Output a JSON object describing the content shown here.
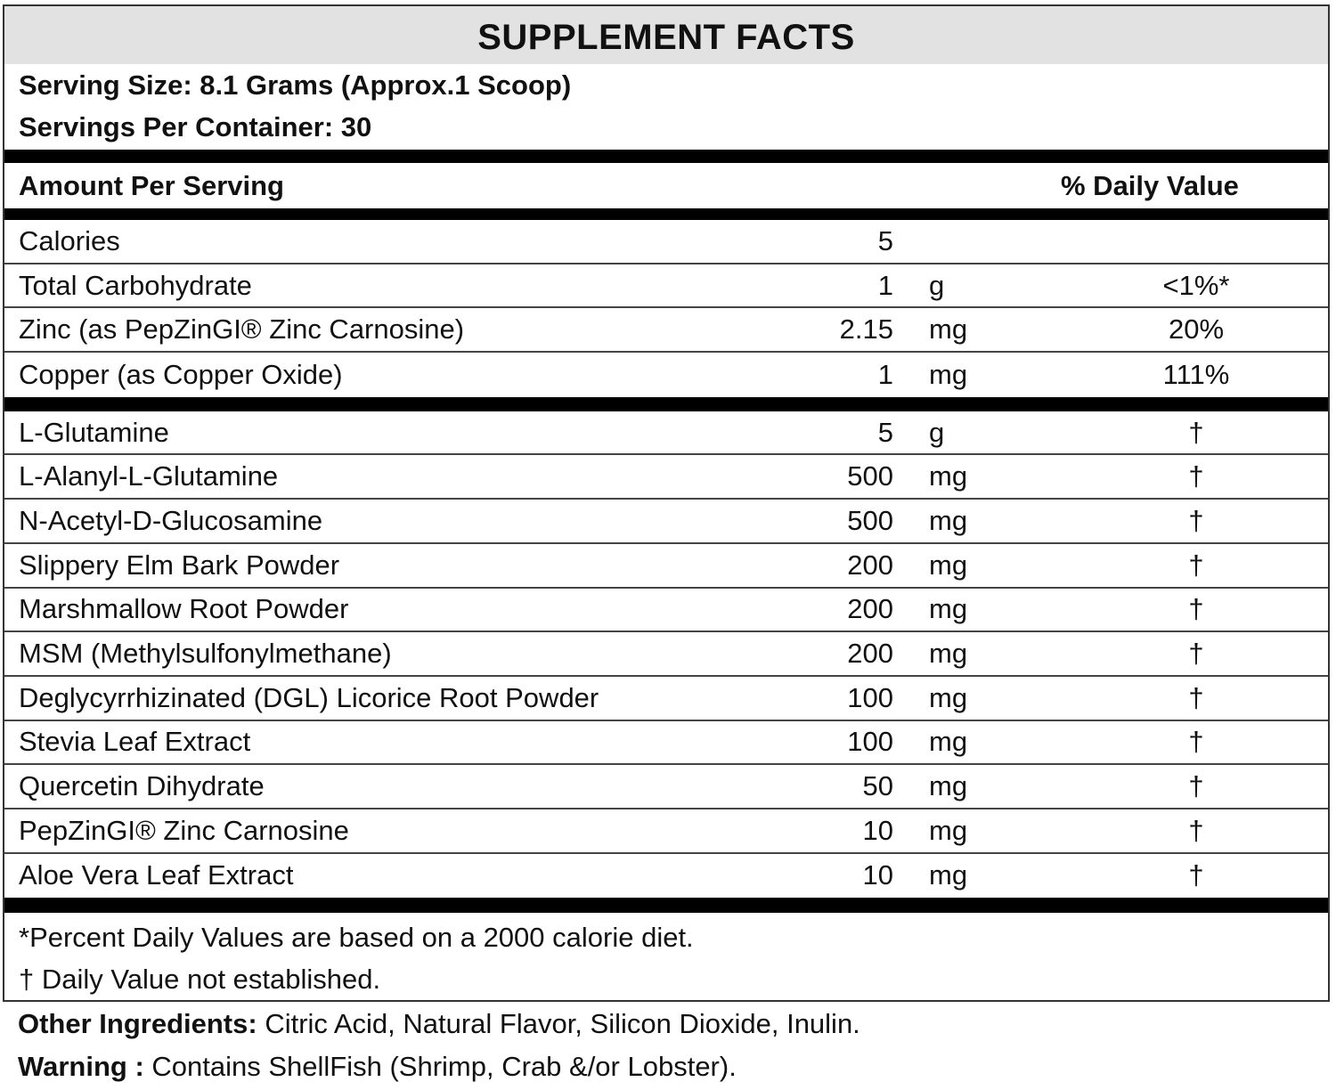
{
  "title": "SUPPLEMENT FACTS",
  "serving_size": "Serving Size: 8.1 Grams (Approx.1 Scoop)",
  "servings_per_container": "Servings Per Container: 30",
  "header": {
    "amount": "Amount Per Serving",
    "daily_value": "% Daily Value"
  },
  "nutrients": [
    {
      "name": "Calories",
      "amount": "5",
      "unit": "",
      "dv": ""
    },
    {
      "name": "Total Carbohydrate",
      "amount": "1",
      "unit": "g",
      "dv": "<1%*"
    },
    {
      "name": "Zinc (as PepZinGI® Zinc Carnosine)",
      "amount": "2.15",
      "unit": "mg",
      "dv": "20%"
    },
    {
      "name": "Copper (as Copper Oxide)",
      "amount": "1",
      "unit": "mg",
      "dv": "111%"
    }
  ],
  "ingredients": [
    {
      "name": "L-Glutamine",
      "amount": "5",
      "unit": "g",
      "dv": "†"
    },
    {
      "name": "L-Alanyl-L-Glutamine",
      "amount": "500",
      "unit": "mg",
      "dv": "†"
    },
    {
      "name": "N-Acetyl-D-Glucosamine",
      "amount": "500",
      "unit": "mg",
      "dv": "†"
    },
    {
      "name": "Slippery Elm Bark Powder",
      "amount": "200",
      "unit": "mg",
      "dv": "†"
    },
    {
      "name": "Marshmallow Root Powder",
      "amount": "200",
      "unit": "mg",
      "dv": "†"
    },
    {
      "name": "MSM (Methylsulfonylmethane)",
      "amount": "200",
      "unit": "mg",
      "dv": "†"
    },
    {
      "name": "Deglycyrrhizinated (DGL) Licorice Root Powder",
      "amount": "100",
      "unit": "mg",
      "dv": "†"
    },
    {
      "name": "Stevia Leaf Extract",
      "amount": "100",
      "unit": "mg",
      "dv": "†"
    },
    {
      "name": "Quercetin Dihydrate",
      "amount": "50",
      "unit": "mg",
      "dv": "†"
    },
    {
      "name": "PepZinGI® Zinc Carnosine",
      "amount": "10",
      "unit": "mg",
      "dv": "†"
    },
    {
      "name": "Aloe Vera Leaf Extract",
      "amount": "10",
      "unit": "mg",
      "dv": "†"
    }
  ],
  "footnotes": [
    "*Percent Daily Values are based on a 2000 calorie diet.",
    "† Daily Value not established."
  ],
  "other_ingredients": {
    "label": "Other Ingredients:",
    "text": " Citric Acid, Natural Flavor, Silicon Dioxide, Inulin."
  },
  "warning": {
    "label": "Warning :",
    "text": " Contains ShellFish (Shrimp, Crab &/or Lobster)."
  }
}
